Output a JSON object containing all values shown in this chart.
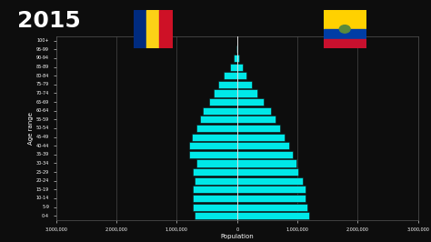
{
  "title": "2015",
  "background_color": "#0d0d0d",
  "bar_color": "#00e8e8",
  "bar_edge_color": "#111111",
  "text_color": "#ffffff",
  "xlabel": "Population",
  "ylabel": "Age range",
  "age_groups": [
    "0-4",
    "5-9",
    "10-14",
    "15-19",
    "20-24",
    "25-29",
    "30-34",
    "35-39",
    "40-44",
    "45-49",
    "50-54",
    "55-59",
    "60-64",
    "65-69",
    "70-74",
    "75-79",
    "80-84",
    "85-89",
    "90-94",
    "95-99",
    "100+"
  ],
  "romania": [
    700000,
    730000,
    740000,
    730000,
    700000,
    740000,
    680000,
    790000,
    800000,
    750000,
    680000,
    620000,
    570000,
    470000,
    380000,
    310000,
    220000,
    120000,
    50000,
    15000,
    3000
  ],
  "ecuador": [
    1200000,
    1170000,
    1140000,
    1130000,
    1090000,
    1020000,
    990000,
    930000,
    860000,
    790000,
    720000,
    640000,
    560000,
    440000,
    340000,
    250000,
    160000,
    90000,
    40000,
    12000,
    3000
  ],
  "xlim": 3000000,
  "xticks": [
    -3000000,
    -2000000,
    -1000000,
    0,
    1000000,
    2000000,
    3000000
  ],
  "xtick_labels": [
    "3,000,000",
    "2,000,000",
    "1,000,000",
    "0",
    "1,000,000",
    "2,000,000",
    "3,000,000"
  ],
  "grid_color": "#555555",
  "romania_flag": {
    "blue": "#002B7F",
    "yellow": "#FCD116",
    "red": "#CE1126"
  },
  "ecuador_flag": {
    "yellow": "#FFD100",
    "blue": "#003DA5",
    "red": "#C8102E"
  }
}
